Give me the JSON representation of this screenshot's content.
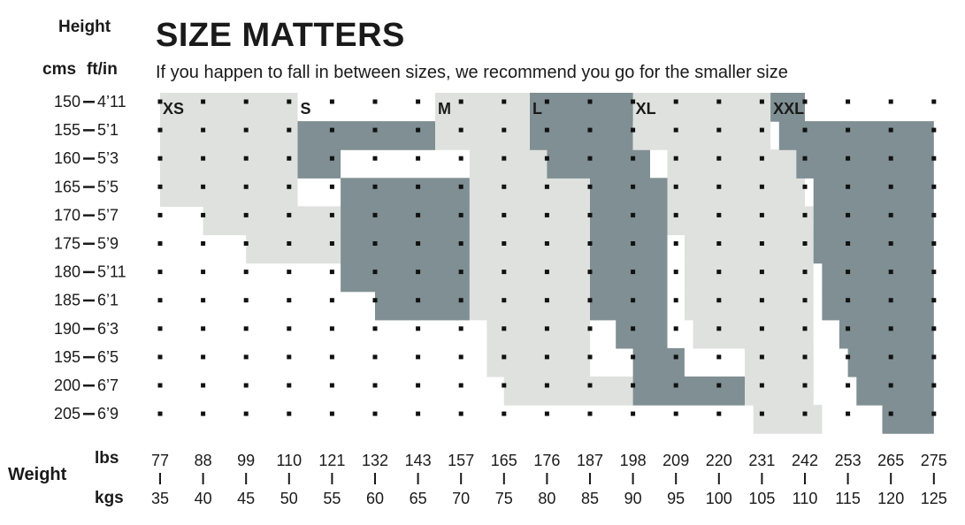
{
  "header": {
    "title": "SIZE MATTERS",
    "subtitle": "If you happen to fall in between sizes, we recommend you go for the smaller size",
    "height_label": "Height",
    "cms_label": "cms",
    "ftin_label": "ft/in",
    "weight_label": "Weight",
    "lbs_label": "lbs",
    "kgs_label": "kgs"
  },
  "colors": {
    "light": "#dfe1de",
    "dark": "#7f8f93",
    "text": "#1a1a1a",
    "dot": "#111111"
  },
  "chart_data": {
    "type": "heatmap",
    "title": "SIZE MATTERS",
    "subtitle": "If you happen to fall in between sizes, we recommend you go for the smaller size",
    "xlabel": "Weight",
    "ylabel": "Height",
    "heights": [
      {
        "cms": "150",
        "ftin": "4’11"
      },
      {
        "cms": "155",
        "ftin": "5’1"
      },
      {
        "cms": "160",
        "ftin": "5’3"
      },
      {
        "cms": "165",
        "ftin": "5’5"
      },
      {
        "cms": "170",
        "ftin": "5’7"
      },
      {
        "cms": "175",
        "ftin": "5’9"
      },
      {
        "cms": "180",
        "ftin": "5’11"
      },
      {
        "cms": "185",
        "ftin": "6’1"
      },
      {
        "cms": "190",
        "ftin": "6’3"
      },
      {
        "cms": "195",
        "ftin": "6’5"
      },
      {
        "cms": "200",
        "ftin": "6’7"
      },
      {
        "cms": "205",
        "ftin": "6’9"
      }
    ],
    "weights_lbs": [
      "77",
      "88",
      "99",
      "110",
      "121",
      "132",
      "143",
      "157",
      "165",
      "176",
      "187",
      "198",
      "209",
      "220",
      "231",
      "242",
      "253",
      "265",
      "275"
    ],
    "weights_kgs": [
      "35",
      "40",
      "45",
      "50",
      "55",
      "60",
      "65",
      "70",
      "75",
      "80",
      "85",
      "90",
      "95",
      "100",
      "105",
      "110",
      "115",
      "120",
      "125"
    ],
    "sizes": [
      {
        "label": "XS",
        "shade": "light",
        "bands_kg": [
          [
            35,
            51
          ],
          [
            35,
            51
          ],
          [
            35,
            51
          ],
          [
            35,
            51
          ],
          [
            40,
            56
          ],
          [
            45,
            56
          ]
        ]
      },
      {
        "label": "S",
        "shade": "dark",
        "bands_kg": [
          [
            68,
            67
          ],
          [
            51,
            67
          ],
          [
            51,
            56
          ],
          [
            56,
            71
          ],
          [
            56,
            71
          ],
          [
            56,
            71
          ],
          [
            56,
            71
          ],
          [
            60,
            71
          ]
        ]
      },
      {
        "label": "M",
        "shade": "light",
        "bands_kg": [
          [
            67,
            78
          ],
          [
            67,
            80
          ],
          [
            71,
            80
          ],
          [
            71,
            85
          ],
          [
            71,
            85
          ],
          [
            71,
            85
          ],
          [
            71,
            85
          ],
          [
            71,
            85
          ],
          [
            73,
            85
          ],
          [
            73,
            85
          ],
          [
            75,
            90
          ]
        ]
      },
      {
        "label": "L",
        "shade": "dark",
        "bands_kg": [
          [
            78,
            91
          ],
          [
            78,
            90
          ],
          [
            80,
            92
          ],
          [
            85,
            94
          ],
          [
            85,
            94
          ],
          [
            85,
            94
          ],
          [
            85,
            94
          ],
          [
            85,
            94
          ],
          [
            88,
            94
          ],
          [
            90,
            96
          ],
          [
            90,
            103
          ]
        ]
      },
      {
        "label": "XL",
        "shade": "light",
        "bands_kg": [
          [
            90,
            106
          ],
          [
            90,
            106
          ],
          [
            94,
            109
          ],
          [
            94,
            110
          ],
          [
            94,
            111
          ],
          [
            96,
            111
          ],
          [
            96,
            111
          ],
          [
            96,
            111
          ],
          [
            97,
            111
          ],
          [
            103,
            111
          ],
          [
            103,
            111
          ],
          [
            104,
            112
          ]
        ]
      },
      {
        "label": "XXL",
        "shade": "dark",
        "bands_kg": [
          [
            106,
            110
          ],
          [
            107,
            125
          ],
          [
            109,
            125
          ],
          [
            111,
            125
          ],
          [
            111,
            125
          ],
          [
            111,
            125
          ],
          [
            112,
            125
          ],
          [
            112,
            125
          ],
          [
            114,
            125
          ],
          [
            115,
            125
          ],
          [
            116,
            125
          ],
          [
            119,
            125
          ]
        ]
      }
    ]
  }
}
